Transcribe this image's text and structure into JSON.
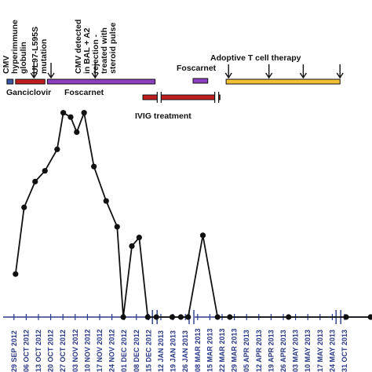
{
  "chart_data": {
    "type": "line",
    "x_tick_labels": [
      "29 SEP 2012",
      "06 OCT 2012",
      "13 OCT 2012",
      "20 OCT 2012",
      "27 OCT 2012",
      "03 NOV 2012",
      "10 NOV 2012",
      "17 NOV 2012",
      "24 NOV 2012",
      "01 DEC 2012",
      "08 DEC 2012",
      "15 DEC 2012",
      "12 JAN 2013",
      "19 JAN 2013",
      "26 JAN 2013",
      "08 MAR 2013",
      "15 MAR 2013",
      "22 MAR 2013",
      "29 MAR 2013",
      "05 APR 2013",
      "12 APR 2013",
      "19 APR 2013",
      "26 APR 2013",
      "03 MAY 2013",
      "10 MAY 2013",
      "17 MAY 2013",
      "24 MAY 2013",
      "31 OCT 2013"
    ],
    "axis_breaks_after_tick_index": [
      11,
      14,
      26
    ],
    "series": [
      {
        "points": [
          {
            "x": 0.5,
            "y": 0.2
          },
          {
            "x": 1.2,
            "y": 0.51
          },
          {
            "x": 2.1,
            "y": 0.63
          },
          {
            "x": 2.9,
            "y": 0.68
          },
          {
            "x": 3.9,
            "y": 0.78
          },
          {
            "x": 4.4,
            "y": 0.95
          },
          {
            "x": 5.0,
            "y": 0.93
          },
          {
            "x": 5.5,
            "y": 0.86
          },
          {
            "x": 6.1,
            "y": 0.95
          },
          {
            "x": 6.9,
            "y": 0.7
          },
          {
            "x": 7.9,
            "y": 0.54
          },
          {
            "x": 8.8,
            "y": 0.42
          },
          {
            "x": 9.3,
            "y": 0.0
          },
          {
            "x": 10.0,
            "y": 0.33
          },
          {
            "x": 10.6,
            "y": 0.37
          },
          {
            "x": 11.3,
            "y": 0.0
          },
          {
            "x": 12.0,
            "y": 0.0
          },
          {
            "x": 13.3,
            "y": 0.0
          },
          {
            "x": 14.0,
            "y": 0.0
          },
          {
            "x": 14.6,
            "y": 0.0
          },
          {
            "x": 15.8,
            "y": 0.38
          },
          {
            "x": 17.0,
            "y": 0.0
          },
          {
            "x": 18.0,
            "y": 0.0
          },
          {
            "x": 22.8,
            "y": 0.0
          },
          {
            "x": 27.5,
            "y": 0.0
          },
          {
            "x": 29.5,
            "y": 0.0
          }
        ]
      }
    ],
    "therapy_bars": [
      {
        "label": "",
        "color": "#3a56a8",
        "x0": -0.2,
        "x1": 0.3,
        "row": 1
      },
      {
        "label": "Ganciclovir",
        "color": "#c01e1e",
        "x0": 0.5,
        "x1": 2.9,
        "row": 1
      },
      {
        "label": "Foscarnet",
        "color": "#8b3fc0",
        "x0": 3.1,
        "x1": 11.9,
        "row": 1
      },
      {
        "label": "IVIG treatment",
        "color": "#c01e1e",
        "x0": 10.9,
        "x1": 17.2,
        "row": 2
      },
      {
        "label": "Foscarnet",
        "color": "#8b3fc0",
        "x0": 15.0,
        "x1": 16.2,
        "row": 0
      },
      {
        "label": "Adoptive T cell therapy",
        "color": "#f3bf35",
        "x0": 17.7,
        "x1": 27.0,
        "row": 1
      }
    ],
    "event_annotations": [
      {
        "text": "CMV hyperimmune globulin",
        "x": 2.0
      },
      {
        "text": "UL97-L595S mutation",
        "x": 3.4
      },
      {
        "text": "CMV detected in BAL + A2 rejection - treated with steroid pulse",
        "x": 7.0
      }
    ],
    "t_cell_infusion_arrows": [
      17.9,
      21.2,
      24.0,
      27.0
    ]
  },
  "labels": {
    "ann_cmv_hig": [
      "CMV",
      "hyperimmune",
      "globulin"
    ],
    "ann_ul97": [
      "UL97-L595S",
      "mutation"
    ],
    "ann_bal": [
      "CMV detected",
      "in BAL + A2",
      "rejection -",
      "treated with",
      "steroid pulse"
    ],
    "ann_foscarnet_top": "Foscarnet",
    "ann_adoptive": "Adoptive T cell therapy",
    "bar_ganciclovir": "Ganciclovir",
    "bar_foscarnet": "Foscarnet",
    "bar_ivig": "IVIG treatment"
  },
  "colors": {
    "axis": "#2b3a8a",
    "data_line": "#111111",
    "ganciclovir": "#c01e1e",
    "foscarnet": "#8b3fc0",
    "ivig": "#c01e1e",
    "t_cell": "#f3bf35",
    "pre_bar": "#3a56a8"
  }
}
